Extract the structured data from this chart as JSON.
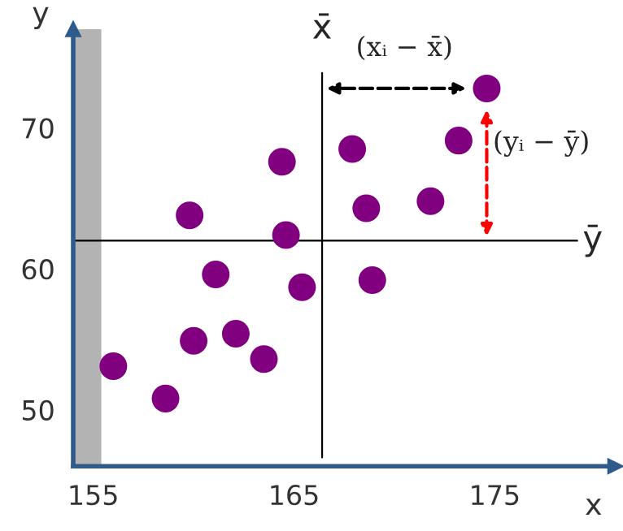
{
  "chart_data": {
    "type": "scatter",
    "xlabel": "x",
    "ylabel": "y",
    "x": [
      156.0,
      158.6,
      159.8,
      160.0,
      161.1,
      162.1,
      163.5,
      164.4,
      164.6,
      165.4,
      167.9,
      168.6,
      168.9,
      171.8,
      173.2,
      174.6
    ],
    "series": [
      {
        "color": "#800080",
        "values": [
          53.1,
          50.8,
          63.8,
          54.9,
          59.6,
          55.4,
          53.6,
          67.6,
          62.4,
          58.7,
          68.5,
          64.3,
          59.2,
          64.8,
          69.1,
          72.8
        ]
      }
    ],
    "marker": "circle",
    "grid": false,
    "legend": false,
    "xlim": [
      154,
      181
    ],
    "ylim": [
      46,
      77
    ],
    "xticks": [
      155,
      165,
      175
    ],
    "yticks": [
      50,
      60,
      70
    ],
    "ref_lines": [
      {
        "axis": "x",
        "value": 166.4,
        "label": "x̄",
        "color": "#000000"
      },
      {
        "axis": "y",
        "value": 62.0,
        "label": "ȳ",
        "color": "#000000"
      }
    ],
    "bands": [
      {
        "axis": "x",
        "from": 154,
        "to": 155.4,
        "color": "#b3b3b3"
      }
    ],
    "annotations": [
      {
        "text": "(xᵢ − x̄)",
        "x": 174.6,
        "y": 72.8
      },
      {
        "text": "(yᵢ − ȳ)",
        "x": 174.6,
        "y": 72.8
      }
    ]
  }
}
